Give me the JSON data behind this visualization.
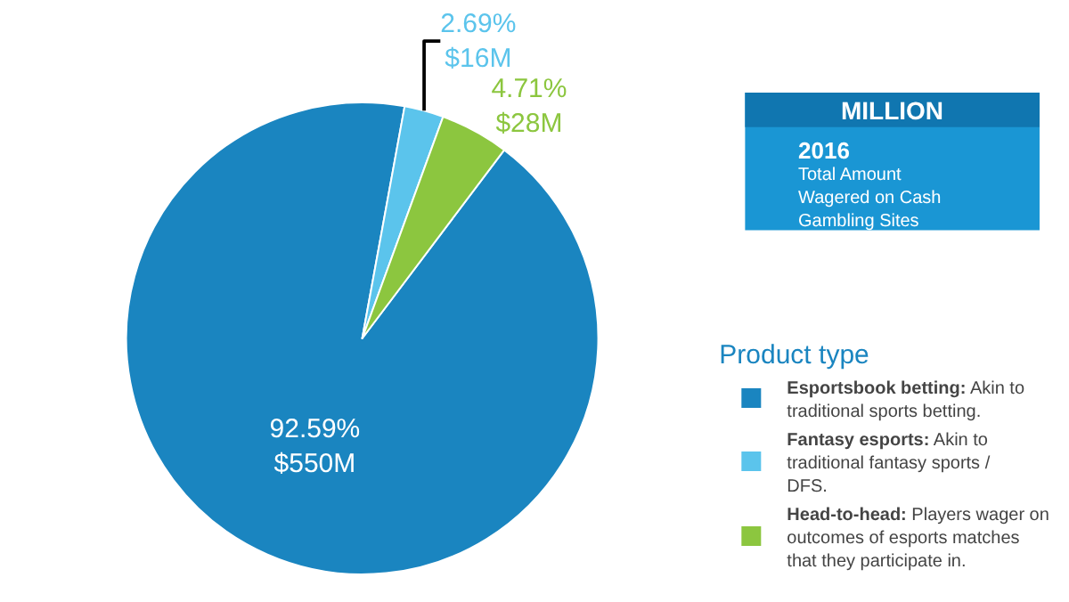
{
  "chart_data": {
    "type": "pie",
    "categories": [
      "Esportsbook betting: Akin to traditional sports betting.",
      "Fantasy esports: Akin to traditional fantasy sports / DFS.",
      "Head-to-head: Players wager on outcomes of esports matches that they participate in."
    ],
    "values": [
      92.59,
      2.69,
      4.71
    ],
    "colors": [
      "#1a85c0",
      "#5bc4ec",
      "#8cc63f"
    ],
    "value_labels": [
      "92.59%\n$550M",
      "2.69%\n$16M",
      "4.71%\n$28M"
    ],
    "legend_title": "Product type",
    "legend": "right",
    "annotations": [
      "MILLION",
      "2016",
      "Total Amount\nWagered on Cash\nGambling Sites"
    ]
  }
}
